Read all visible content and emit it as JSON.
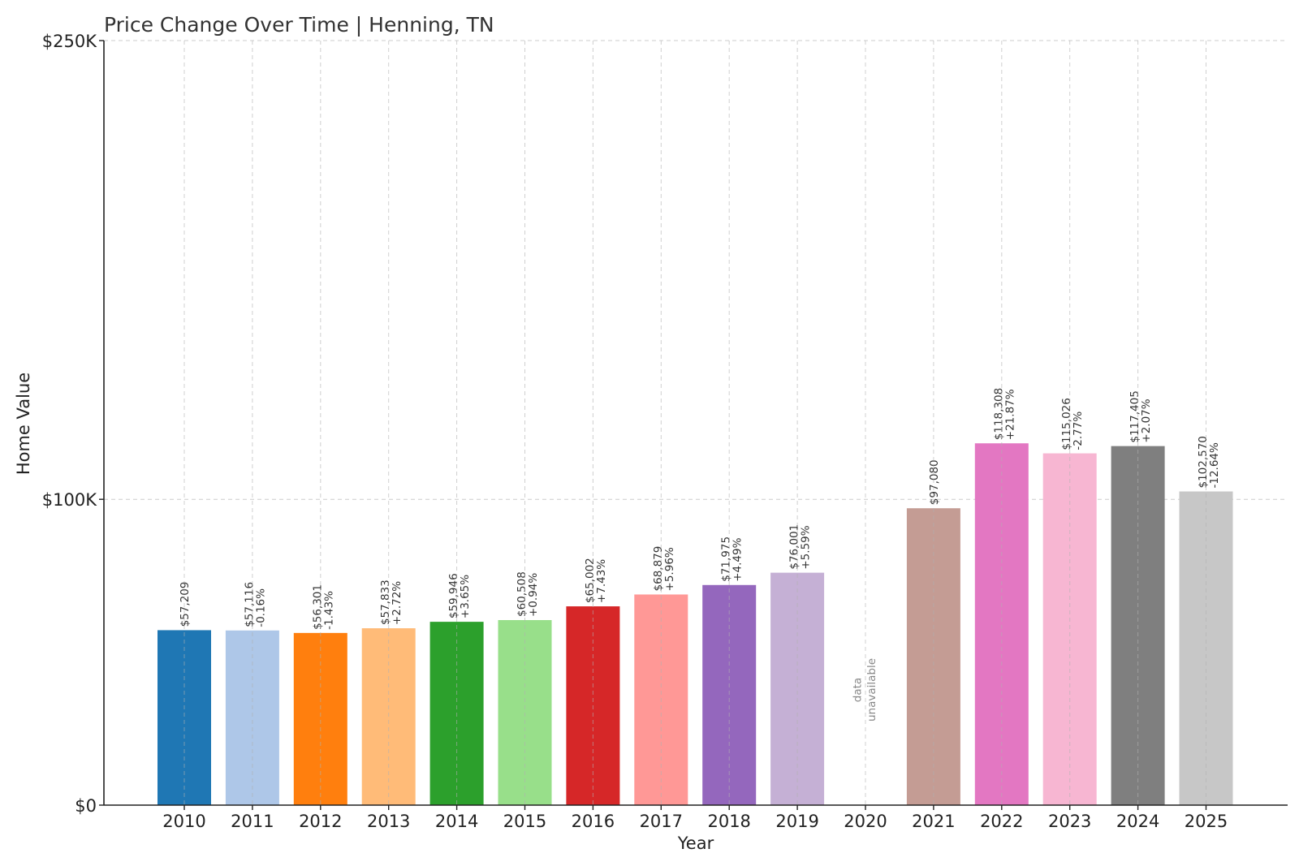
{
  "chart_data": {
    "type": "bar",
    "title": "Price Change Over Time | Henning, TN",
    "xlabel": "Year",
    "ylabel": "Home Value",
    "ylim": [
      0,
      250000
    ],
    "yticks": [
      {
        "value": 0,
        "label": "$0"
      },
      {
        "value": 100000,
        "label": "$100K"
      },
      {
        "value": 250000,
        "label": "$250K"
      }
    ],
    "grid": true,
    "categories": [
      "2010",
      "2011",
      "2012",
      "2013",
      "2014",
      "2015",
      "2016",
      "2017",
      "2018",
      "2019",
      "2020",
      "2021",
      "2022",
      "2023",
      "2024",
      "2025"
    ],
    "values": [
      57209,
      57116,
      56301,
      57833,
      59946,
      60508,
      65002,
      68879,
      71975,
      76001,
      null,
      97080,
      118308,
      115026,
      117405,
      102570
    ],
    "value_labels": [
      "$57,209",
      "$57,116",
      "$56,301",
      "$57,833",
      "$59,946",
      "$60,508",
      "$65,002",
      "$68,879",
      "$71,975",
      "$76,001",
      "",
      "$97,080",
      "$118,308",
      "$115,026",
      "$117,405",
      "$102,570"
    ],
    "change_labels": [
      "",
      "-0.16%",
      "-1.43%",
      "+2.72%",
      "+3.65%",
      "+0.94%",
      "+7.43%",
      "+5.96%",
      "+4.49%",
      "+5.59%",
      "",
      "",
      "+21.87%",
      "-2.77%",
      "+2.07%",
      "-12.64%"
    ],
    "missing_label": [
      "data",
      "unavailable"
    ],
    "colors": [
      "#1f77b4",
      "#aec7e8",
      "#ff7f0e",
      "#ffbb78",
      "#2ca02c",
      "#98df8a",
      "#d62728",
      "#ff9896",
      "#9467bd",
      "#c5b0d5",
      "#8c564b",
      "#c49c94",
      "#e377c2",
      "#f7b6d2",
      "#7f7f7f",
      "#c7c7c7"
    ]
  }
}
